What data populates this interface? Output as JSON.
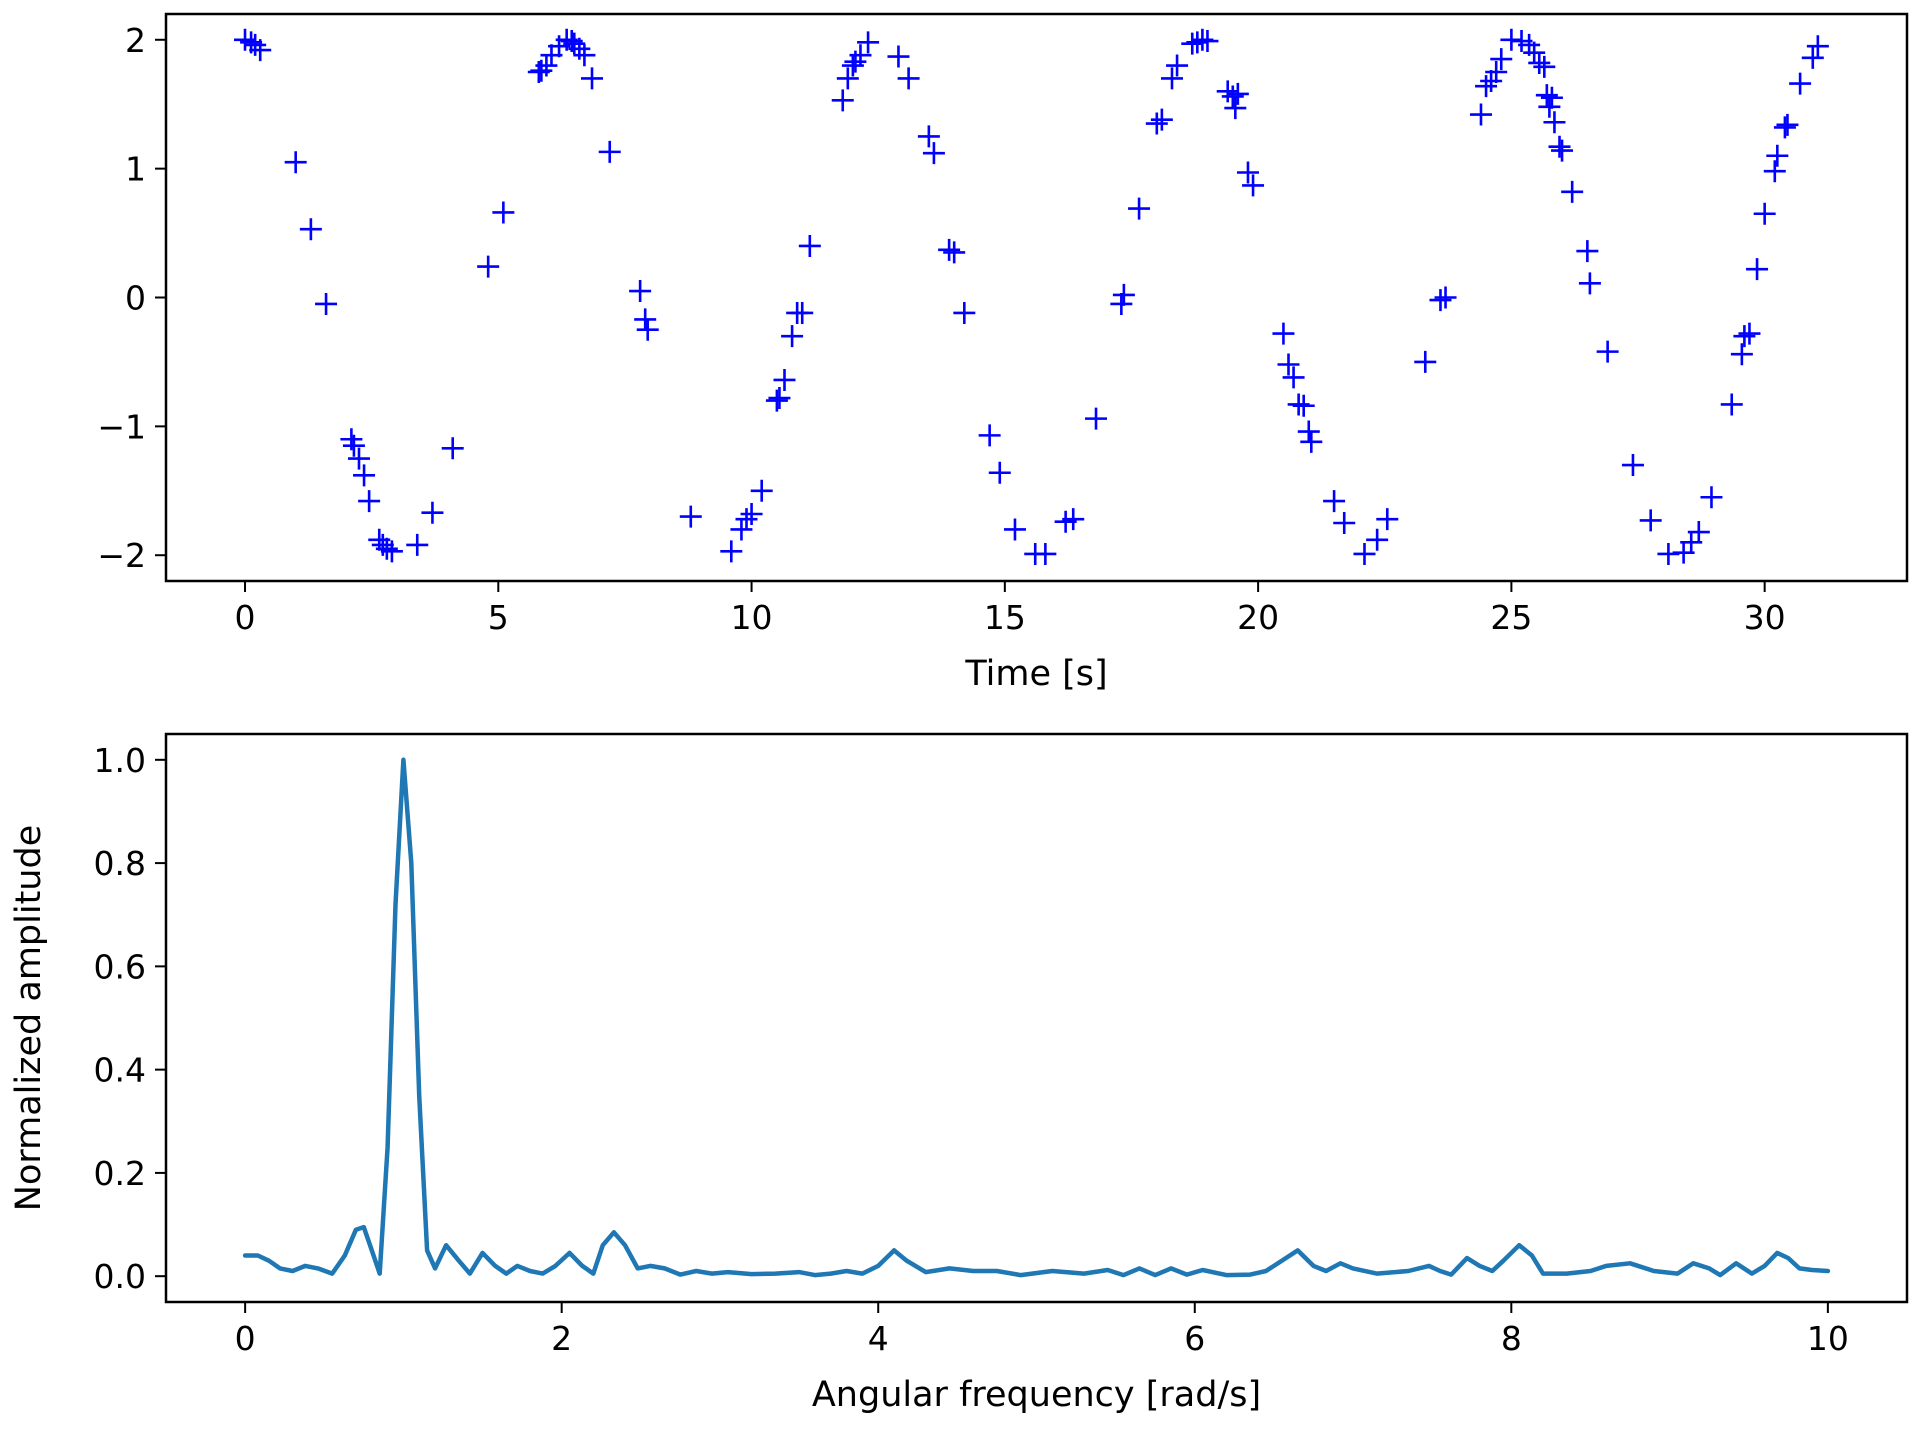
{
  "chart_data": [
    {
      "type": "scatter",
      "marker": "+",
      "marker_color": "#0000ff",
      "xlabel": "Time [s]",
      "ylabel": "",
      "xlim": [
        -1.56,
        32.81
      ],
      "ylim": [
        -2.2,
        2.2
      ],
      "xticks": [
        0,
        5,
        10,
        15,
        20,
        25,
        30
      ],
      "yticks": [
        -2,
        -1,
        0,
        1,
        2
      ],
      "xtick_labels": [
        "0",
        "5",
        "10",
        "15",
        "20",
        "25",
        "30"
      ],
      "ytick_labels": [
        "−2",
        "−1",
        "0",
        "1",
        "2"
      ],
      "grid": false,
      "points": [
        [
          0.0,
          2.0
        ],
        [
          0.12,
          1.98
        ],
        [
          0.2,
          1.96
        ],
        [
          0.3,
          1.92
        ],
        [
          1.0,
          1.05
        ],
        [
          1.3,
          0.53
        ],
        [
          1.6,
          -0.05
        ],
        [
          2.1,
          -1.1
        ],
        [
          2.15,
          -1.15
        ],
        [
          2.25,
          -1.25
        ],
        [
          2.35,
          -1.38
        ],
        [
          2.45,
          -1.58
        ],
        [
          2.65,
          -1.88
        ],
        [
          2.72,
          -1.92
        ],
        [
          2.8,
          -1.95
        ],
        [
          2.9,
          -1.97
        ],
        [
          3.4,
          -1.92
        ],
        [
          3.7,
          -1.67
        ],
        [
          4.1,
          -1.17
        ],
        [
          4.8,
          0.24
        ],
        [
          5.1,
          0.66
        ],
        [
          5.8,
          1.75
        ],
        [
          5.85,
          1.76
        ],
        [
          5.95,
          1.8
        ],
        [
          6.05,
          1.88
        ],
        [
          6.2,
          1.95
        ],
        [
          6.35,
          2.0
        ],
        [
          6.45,
          1.99
        ],
        [
          6.5,
          1.97
        ],
        [
          6.6,
          1.93
        ],
        [
          6.7,
          1.88
        ],
        [
          6.85,
          1.7
        ],
        [
          7.2,
          1.13
        ],
        [
          7.8,
          0.05
        ],
        [
          7.9,
          -0.17
        ],
        [
          7.95,
          -0.25
        ],
        [
          8.8,
          -1.7
        ],
        [
          9.6,
          -1.97
        ],
        [
          9.8,
          -1.8
        ],
        [
          9.9,
          -1.72
        ],
        [
          10.0,
          -1.68
        ],
        [
          10.2,
          -1.5
        ],
        [
          10.5,
          -0.8
        ],
        [
          10.55,
          -0.78
        ],
        [
          10.65,
          -0.64
        ],
        [
          10.8,
          -0.3
        ],
        [
          10.9,
          -0.12
        ],
        [
          11.0,
          -0.12
        ],
        [
          11.15,
          0.4
        ],
        [
          11.8,
          1.53
        ],
        [
          11.9,
          1.7
        ],
        [
          12.0,
          1.8
        ],
        [
          12.05,
          1.83
        ],
        [
          12.15,
          1.88
        ],
        [
          12.3,
          1.98
        ],
        [
          12.9,
          1.87
        ],
        [
          13.1,
          1.7
        ],
        [
          13.5,
          1.25
        ],
        [
          13.6,
          1.12
        ],
        [
          13.9,
          0.37
        ],
        [
          14.0,
          0.35
        ],
        [
          14.2,
          -0.12
        ],
        [
          14.7,
          -1.07
        ],
        [
          14.9,
          -1.36
        ],
        [
          15.2,
          -1.8
        ],
        [
          15.6,
          -1.99
        ],
        [
          15.8,
          -1.99
        ],
        [
          16.2,
          -1.74
        ],
        [
          16.35,
          -1.72
        ],
        [
          16.8,
          -0.94
        ],
        [
          17.3,
          -0.05
        ],
        [
          17.35,
          0.02
        ],
        [
          17.65,
          0.69
        ],
        [
          18.0,
          1.35
        ],
        [
          18.1,
          1.38
        ],
        [
          18.3,
          1.7
        ],
        [
          18.4,
          1.8
        ],
        [
          18.7,
          1.97
        ],
        [
          18.8,
          1.98
        ],
        [
          18.9,
          2.0
        ],
        [
          19.0,
          1.99
        ],
        [
          19.4,
          1.6
        ],
        [
          19.5,
          1.56
        ],
        [
          19.6,
          1.58
        ],
        [
          19.55,
          1.47
        ],
        [
          19.8,
          0.97
        ],
        [
          19.9,
          0.87
        ],
        [
          20.5,
          -0.28
        ],
        [
          20.6,
          -0.52
        ],
        [
          20.7,
          -0.62
        ],
        [
          20.8,
          -0.83
        ],
        [
          20.9,
          -0.84
        ],
        [
          21.0,
          -1.04
        ],
        [
          21.05,
          -1.12
        ],
        [
          21.5,
          -1.58
        ],
        [
          21.7,
          -1.75
        ],
        [
          22.1,
          -1.99
        ],
        [
          22.35,
          -1.88
        ],
        [
          22.55,
          -1.72
        ],
        [
          23.3,
          -0.5
        ],
        [
          23.6,
          -0.02
        ],
        [
          23.7,
          0.0
        ],
        [
          24.4,
          1.42
        ],
        [
          24.5,
          1.64
        ],
        [
          24.6,
          1.68
        ],
        [
          24.7,
          1.75
        ],
        [
          24.8,
          1.85
        ],
        [
          25.0,
          2.0
        ],
        [
          25.2,
          1.99
        ],
        [
          25.35,
          1.96
        ],
        [
          25.45,
          1.9
        ],
        [
          25.55,
          1.82
        ],
        [
          25.65,
          1.79
        ],
        [
          25.7,
          1.57
        ],
        [
          25.8,
          1.55
        ],
        [
          25.75,
          1.48
        ],
        [
          25.85,
          1.36
        ],
        [
          25.95,
          1.17
        ],
        [
          26.0,
          1.14
        ],
        [
          26.2,
          0.82
        ],
        [
          26.5,
          0.36
        ],
        [
          26.55,
          0.11
        ],
        [
          26.9,
          -0.42
        ],
        [
          27.4,
          -1.3
        ],
        [
          27.75,
          -1.73
        ],
        [
          28.1,
          -1.99
        ],
        [
          28.4,
          -1.98
        ],
        [
          28.55,
          -1.9
        ],
        [
          28.7,
          -1.82
        ],
        [
          28.95,
          -1.55
        ],
        [
          29.35,
          -0.83
        ],
        [
          29.55,
          -0.44
        ],
        [
          29.6,
          -0.3
        ],
        [
          29.7,
          -0.28
        ],
        [
          29.85,
          0.22
        ],
        [
          30.0,
          0.65
        ],
        [
          30.2,
          0.98
        ],
        [
          30.25,
          1.1
        ],
        [
          30.4,
          1.32
        ],
        [
          30.45,
          1.34
        ],
        [
          30.7,
          1.66
        ],
        [
          30.95,
          1.86
        ],
        [
          31.05,
          1.95
        ]
      ]
    },
    {
      "type": "line",
      "line_color": "#1f77b4",
      "xlabel": "Angular frequency [rad/s]",
      "ylabel": "Normalized amplitude",
      "xlim": [
        -0.5,
        10.5
      ],
      "ylim": [
        -0.05,
        1.05
      ],
      "xticks": [
        0,
        2,
        4,
        6,
        8,
        10
      ],
      "yticks": [
        0.0,
        0.2,
        0.4,
        0.6,
        0.8,
        1.0
      ],
      "xtick_labels": [
        "0",
        "2",
        "4",
        "6",
        "8",
        "10"
      ],
      "ytick_labels": [
        "0.0",
        "0.2",
        "0.4",
        "0.6",
        "0.8",
        "1.0"
      ],
      "grid": false,
      "points": [
        [
          0.0,
          0.04
        ],
        [
          0.08,
          0.04
        ],
        [
          0.15,
          0.03
        ],
        [
          0.22,
          0.015
        ],
        [
          0.3,
          0.01
        ],
        [
          0.38,
          0.02
        ],
        [
          0.46,
          0.015
        ],
        [
          0.55,
          0.005
        ],
        [
          0.63,
          0.04
        ],
        [
          0.7,
          0.09
        ],
        [
          0.75,
          0.095
        ],
        [
          0.8,
          0.05
        ],
        [
          0.85,
          0.005
        ],
        [
          0.9,
          0.25
        ],
        [
          0.95,
          0.72
        ],
        [
          1.0,
          1.0
        ],
        [
          1.05,
          0.8
        ],
        [
          1.1,
          0.35
        ],
        [
          1.15,
          0.05
        ],
        [
          1.2,
          0.015
        ],
        [
          1.27,
          0.06
        ],
        [
          1.35,
          0.03
        ],
        [
          1.42,
          0.005
        ],
        [
          1.5,
          0.045
        ],
        [
          1.58,
          0.02
        ],
        [
          1.65,
          0.005
        ],
        [
          1.72,
          0.02
        ],
        [
          1.8,
          0.01
        ],
        [
          1.88,
          0.005
        ],
        [
          1.96,
          0.02
        ],
        [
          2.05,
          0.045
        ],
        [
          2.13,
          0.02
        ],
        [
          2.2,
          0.005
        ],
        [
          2.26,
          0.06
        ],
        [
          2.33,
          0.085
        ],
        [
          2.4,
          0.06
        ],
        [
          2.48,
          0.015
        ],
        [
          2.56,
          0.02
        ],
        [
          2.65,
          0.015
        ],
        [
          2.75,
          0.003
        ],
        [
          2.85,
          0.01
        ],
        [
          2.95,
          0.005
        ],
        [
          3.05,
          0.008
        ],
        [
          3.2,
          0.004
        ],
        [
          3.35,
          0.005
        ],
        [
          3.5,
          0.008
        ],
        [
          3.6,
          0.002
        ],
        [
          3.7,
          0.005
        ],
        [
          3.8,
          0.01
        ],
        [
          3.9,
          0.005
        ],
        [
          4.0,
          0.02
        ],
        [
          4.1,
          0.05
        ],
        [
          4.18,
          0.03
        ],
        [
          4.3,
          0.008
        ],
        [
          4.45,
          0.015
        ],
        [
          4.6,
          0.01
        ],
        [
          4.75,
          0.01
        ],
        [
          4.9,
          0.002
        ],
        [
          5.1,
          0.01
        ],
        [
          5.3,
          0.005
        ],
        [
          5.45,
          0.012
        ],
        [
          5.55,
          0.002
        ],
        [
          5.65,
          0.015
        ],
        [
          5.75,
          0.002
        ],
        [
          5.85,
          0.015
        ],
        [
          5.95,
          0.003
        ],
        [
          6.05,
          0.012
        ],
        [
          6.2,
          0.002
        ],
        [
          6.35,
          0.003
        ],
        [
          6.45,
          0.01
        ],
        [
          6.55,
          0.03
        ],
        [
          6.65,
          0.05
        ],
        [
          6.75,
          0.02
        ],
        [
          6.83,
          0.01
        ],
        [
          6.92,
          0.025
        ],
        [
          7.0,
          0.015
        ],
        [
          7.15,
          0.005
        ],
        [
          7.35,
          0.01
        ],
        [
          7.48,
          0.02
        ],
        [
          7.55,
          0.01
        ],
        [
          7.62,
          0.003
        ],
        [
          7.72,
          0.035
        ],
        [
          7.8,
          0.02
        ],
        [
          7.88,
          0.01
        ],
        [
          7.95,
          0.03
        ],
        [
          8.05,
          0.06
        ],
        [
          8.13,
          0.04
        ],
        [
          8.2,
          0.005
        ],
        [
          8.35,
          0.005
        ],
        [
          8.5,
          0.01
        ],
        [
          8.6,
          0.02
        ],
        [
          8.75,
          0.025
        ],
        [
          8.9,
          0.01
        ],
        [
          9.05,
          0.005
        ],
        [
          9.15,
          0.025
        ],
        [
          9.25,
          0.015
        ],
        [
          9.32,
          0.002
        ],
        [
          9.42,
          0.025
        ],
        [
          9.52,
          0.005
        ],
        [
          9.6,
          0.02
        ],
        [
          9.68,
          0.045
        ],
        [
          9.75,
          0.035
        ],
        [
          9.82,
          0.015
        ],
        [
          9.9,
          0.012
        ],
        [
          10.0,
          0.01
        ]
      ]
    }
  ]
}
